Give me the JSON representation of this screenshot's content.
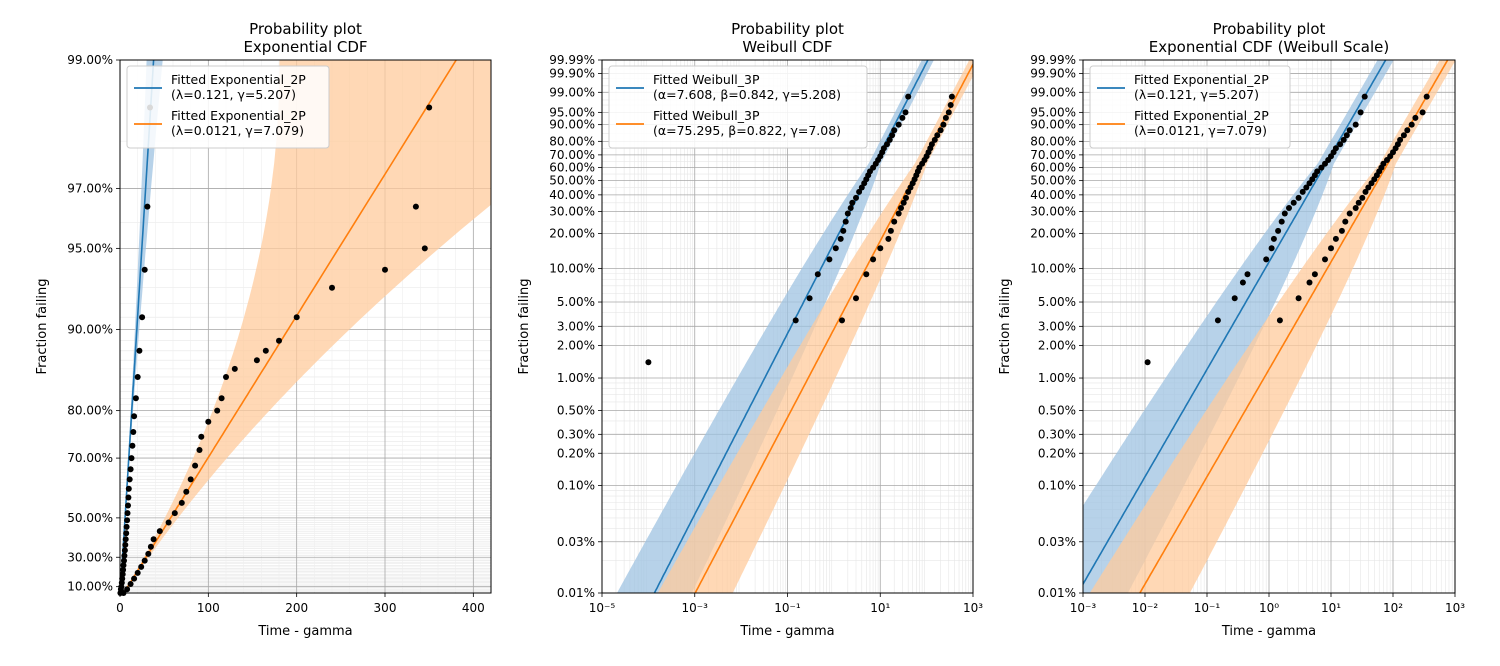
{
  "colors": {
    "blue": "#1f77b4",
    "orange": "#ff7f0e",
    "blue_band": "#9fc3e1",
    "orange_band": "#ffcb9c",
    "points": "#000000"
  },
  "chart_data": [
    {
      "type": "scatter",
      "title": "Probability plot",
      "subtitle": "Exponential CDF",
      "xlabel": "Time - gamma",
      "ylabel": "Fraction failing",
      "xscale": "linear",
      "yscale": "exponential",
      "xlim": [
        0,
        420
      ],
      "ylim": [
        0.05,
        0.99
      ],
      "xticks": [
        0,
        100,
        200,
        300,
        400
      ],
      "xtick_labels": [
        "0",
        "100",
        "200",
        "300",
        "400"
      ],
      "yticks": [
        0.1,
        0.3,
        0.5,
        0.7,
        0.8,
        0.9,
        0.95,
        0.97,
        0.99
      ],
      "ytick_labels": [
        "10.00%",
        "30.00%",
        "50.00%",
        "70.00%",
        "80.00%",
        "90.00%",
        "95.00%",
        "97.00%",
        "99.00%"
      ],
      "grid": true,
      "legend_position": "top-left",
      "series": [
        {
          "name": "Fitted Exponential_2P",
          "params": "(λ=0.121, γ=5.207)",
          "color": "#1f77b4",
          "model": "exponential",
          "lambda": 0.121,
          "x_points": [
            0.5,
            1,
            1.5,
            2,
            2.5,
            3,
            3.5,
            4,
            4.5,
            5,
            5.5,
            6,
            6.5,
            7,
            7.5,
            8,
            8.5,
            9,
            9.5,
            10,
            11,
            12,
            13,
            14,
            15,
            16,
            18,
            20,
            22,
            25,
            28,
            31,
            34
          ],
          "y_points": [
            0.05,
            0.08,
            0.1,
            0.13,
            0.16,
            0.19,
            0.22,
            0.25,
            0.28,
            0.31,
            0.34,
            0.37,
            0.4,
            0.43,
            0.46,
            0.49,
            0.52,
            0.55,
            0.58,
            0.61,
            0.64,
            0.67,
            0.7,
            0.73,
            0.76,
            0.79,
            0.82,
            0.85,
            0.88,
            0.91,
            0.94,
            0.965,
            0.985
          ]
        },
        {
          "name": "Fitted Exponential_2P",
          "params": "(λ=0.0121, γ=7.079)",
          "color": "#ff7f0e",
          "model": "exponential",
          "lambda": 0.0121,
          "x_points": [
            4,
            8,
            12,
            16,
            20,
            24,
            28,
            32,
            35,
            38,
            45,
            55,
            62,
            70,
            75,
            80,
            85,
            90,
            92,
            100,
            110,
            115,
            120,
            130,
            155,
            165,
            180,
            200,
            240,
            300,
            345,
            335,
            350
          ],
          "y_points": [
            0.05,
            0.08,
            0.12,
            0.16,
            0.2,
            0.24,
            0.28,
            0.32,
            0.36,
            0.4,
            0.44,
            0.48,
            0.52,
            0.56,
            0.6,
            0.64,
            0.68,
            0.72,
            0.75,
            0.78,
            0.8,
            0.82,
            0.85,
            0.86,
            0.87,
            0.88,
            0.89,
            0.91,
            0.93,
            0.94,
            0.95,
            0.965,
            0.985
          ]
        }
      ]
    },
    {
      "type": "scatter",
      "title": "Probability plot",
      "subtitle": "Weibull CDF",
      "xlabel": "Time - gamma",
      "ylabel": "Fraction failing",
      "xscale": "log",
      "yscale": "weibull",
      "xlim": [
        1e-05,
        1000
      ],
      "ylim": [
        0.0001,
        0.9999
      ],
      "xticks": [
        1e-05,
        0.001,
        0.1,
        10,
        1000
      ],
      "xtick_labels": [
        "10⁻⁵",
        "10⁻³",
        "10⁻¹",
        "10¹",
        "10³"
      ],
      "yticks": [
        0.0001,
        0.0003,
        0.001,
        0.002,
        0.003,
        0.005,
        0.01,
        0.02,
        0.03,
        0.05,
        0.1,
        0.2,
        0.3,
        0.4,
        0.5,
        0.6,
        0.7,
        0.8,
        0.9,
        0.95,
        0.99,
        0.999,
        0.9999
      ],
      "ytick_labels": [
        "0.01%",
        "0.03%",
        "0.10%",
        "0.20%",
        "0.30%",
        "0.50%",
        "1.00%",
        "2.00%",
        "3.00%",
        "5.00%",
        "10.00%",
        "20.00%",
        "30.00%",
        "40.00%",
        "50.00%",
        "60.00%",
        "70.00%",
        "80.00%",
        "90.00%",
        "95.00%",
        "99.00%",
        "99.90%",
        "99.99%"
      ],
      "grid": true,
      "legend_position": "top-left",
      "series": [
        {
          "name": "Fitted Weibull_3P",
          "params": "(α=7.608, β=0.842, γ=5.208)",
          "color": "#1f77b4",
          "model": "weibull",
          "alpha": 7.608,
          "beta": 0.842,
          "x_points": [
            0.0001,
            0.15,
            0.3,
            0.45,
            0.8,
            1.1,
            1.4,
            1.6,
            1.8,
            2,
            2.3,
            2.5,
            3,
            3.5,
            4,
            4.5,
            5,
            5.5,
            6,
            7,
            8,
            9,
            10,
            11,
            12,
            14,
            16,
            18,
            20,
            25,
            30,
            35,
            40
          ],
          "y_points": [
            0.014,
            0.034,
            0.054,
            0.089,
            0.12,
            0.15,
            0.18,
            0.21,
            0.25,
            0.29,
            0.32,
            0.35,
            0.38,
            0.42,
            0.45,
            0.48,
            0.51,
            0.54,
            0.57,
            0.6,
            0.63,
            0.66,
            0.69,
            0.72,
            0.75,
            0.78,
            0.81,
            0.84,
            0.87,
            0.9,
            0.93,
            0.95,
            0.985
          ]
        },
        {
          "name": "Fitted Weibull_3P",
          "params": "(α=75.295, β=0.822, γ=7.08)",
          "color": "#ff7f0e",
          "model": "weibull",
          "alpha": 75.295,
          "beta": 0.822,
          "x_points": [
            1.5,
            3,
            5,
            7,
            10,
            15,
            17,
            20,
            25,
            28,
            32,
            36,
            40,
            45,
            50,
            55,
            60,
            65,
            70,
            80,
            90,
            100,
            110,
            120,
            130,
            150,
            170,
            200,
            230,
            260,
            300,
            330,
            350
          ],
          "y_points": [
            0.034,
            0.054,
            0.089,
            0.12,
            0.15,
            0.18,
            0.21,
            0.25,
            0.29,
            0.32,
            0.35,
            0.38,
            0.42,
            0.45,
            0.48,
            0.51,
            0.54,
            0.57,
            0.6,
            0.63,
            0.66,
            0.69,
            0.72,
            0.75,
            0.78,
            0.81,
            0.84,
            0.87,
            0.9,
            0.93,
            0.95,
            0.97,
            0.985
          ]
        }
      ]
    },
    {
      "type": "scatter",
      "title": "Probability plot",
      "subtitle": "Exponential CDF (Weibull Scale)",
      "xlabel": "Time - gamma",
      "ylabel": "Fraction failing",
      "xscale": "log",
      "yscale": "weibull",
      "xlim": [
        0.001,
        1000
      ],
      "ylim": [
        0.0001,
        0.9999
      ],
      "xticks": [
        0.001,
        0.01,
        0.1,
        1,
        10,
        100,
        1000
      ],
      "xtick_labels": [
        "10⁻³",
        "10⁻²",
        "10⁻¹",
        "10⁰",
        "10¹",
        "10²",
        "10³"
      ],
      "yticks": [
        0.0001,
        0.0003,
        0.001,
        0.002,
        0.003,
        0.005,
        0.01,
        0.02,
        0.03,
        0.05,
        0.1,
        0.2,
        0.3,
        0.4,
        0.5,
        0.6,
        0.7,
        0.8,
        0.9,
        0.95,
        0.99,
        0.999,
        0.9999
      ],
      "ytick_labels": [
        "0.01%",
        "0.03%",
        "0.10%",
        "0.20%",
        "0.30%",
        "0.50%",
        "1.00%",
        "2.00%",
        "3.00%",
        "5.00%",
        "10.00%",
        "20.00%",
        "30.00%",
        "40.00%",
        "50.00%",
        "60.00%",
        "70.00%",
        "80.00%",
        "90.00%",
        "95.00%",
        "99.00%",
        "99.90%",
        "99.99%"
      ],
      "grid": true,
      "legend_position": "top-left",
      "series": [
        {
          "name": "Fitted Exponential_2P",
          "params": "(λ=0.121, γ=5.207)",
          "color": "#1f77b4",
          "model": "exponential",
          "lambda": 0.121,
          "x_points": [
            0.011,
            0.15,
            0.28,
            0.38,
            0.45,
            0.9,
            1.1,
            1.2,
            1.4,
            1.6,
            1.8,
            2.1,
            2.5,
            3,
            3.5,
            4,
            4.5,
            5,
            5.5,
            6,
            7,
            8,
            9,
            10,
            11,
            12,
            14,
            16,
            18,
            20,
            25,
            30,
            35
          ],
          "y_points": [
            0.014,
            0.034,
            0.054,
            0.075,
            0.089,
            0.12,
            0.15,
            0.18,
            0.21,
            0.25,
            0.29,
            0.32,
            0.35,
            0.38,
            0.42,
            0.45,
            0.48,
            0.51,
            0.54,
            0.57,
            0.6,
            0.63,
            0.66,
            0.69,
            0.72,
            0.75,
            0.78,
            0.81,
            0.84,
            0.87,
            0.9,
            0.95,
            0.985
          ]
        },
        {
          "name": "Fitted Exponential_2P",
          "params": "(λ=0.0121, γ=7.079)",
          "color": "#ff7f0e",
          "model": "exponential",
          "lambda": 0.0121,
          "x_points": [
            1.5,
            3,
            4.5,
            5.5,
            8,
            10,
            12,
            15,
            17,
            20,
            25,
            28,
            32,
            36,
            40,
            45,
            50,
            55,
            60,
            65,
            70,
            80,
            90,
            100,
            110,
            120,
            130,
            150,
            170,
            200,
            230,
            300,
            350
          ],
          "y_points": [
            0.034,
            0.054,
            0.075,
            0.089,
            0.12,
            0.15,
            0.18,
            0.21,
            0.25,
            0.29,
            0.32,
            0.35,
            0.38,
            0.42,
            0.45,
            0.48,
            0.51,
            0.54,
            0.57,
            0.6,
            0.63,
            0.66,
            0.69,
            0.72,
            0.75,
            0.78,
            0.81,
            0.84,
            0.87,
            0.9,
            0.93,
            0.95,
            0.985
          ]
        }
      ]
    }
  ]
}
